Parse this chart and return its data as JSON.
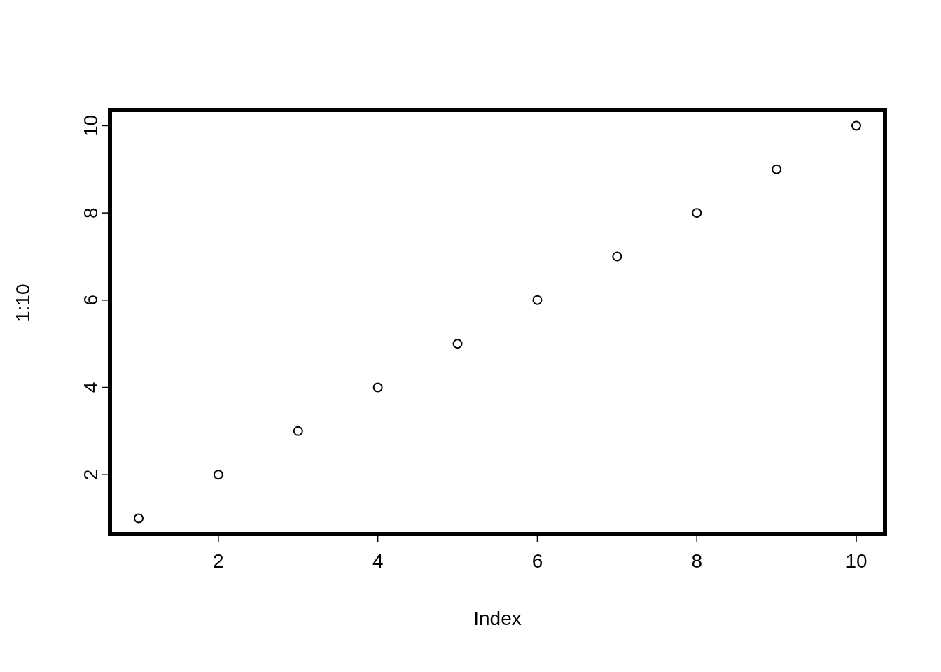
{
  "chart_data": {
    "type": "scatter",
    "xlabel": "Index",
    "ylabel": "1:10",
    "x": [
      1,
      2,
      3,
      4,
      5,
      6,
      7,
      8,
      9,
      10
    ],
    "values": [
      1,
      2,
      3,
      4,
      5,
      6,
      7,
      8,
      9,
      10
    ],
    "color": "#000000",
    "marker": "circle",
    "xlim": [
      0.64,
      10.36
    ],
    "ylim": [
      0.64,
      10.36
    ],
    "xticks": [
      2,
      4,
      6,
      8,
      10
    ],
    "yticks": [
      2,
      4,
      6,
      8,
      10
    ]
  }
}
